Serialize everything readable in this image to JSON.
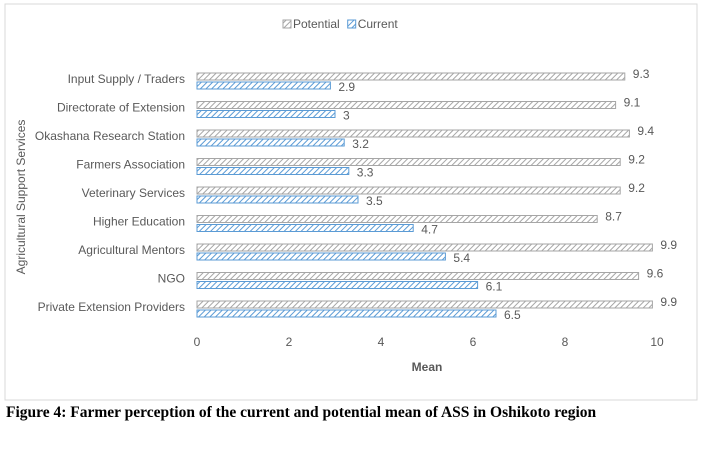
{
  "chart_data": {
    "type": "hbar",
    "caption": "Figure 4: Farmer perception of the current and potential mean of ASS in Oshikoto region",
    "xlabel": "Mean",
    "ylabel": "Agricultural Support Services",
    "categories": [
      "Input Supply / Traders",
      "Directorate of Extension",
      "Okashana Research Station",
      "Farmers Association",
      "Veterinary Services",
      "Higher Education",
      "Agricultural Mentors",
      "NGO",
      "Private Extension Providers"
    ],
    "series": [
      {
        "name": "Potential",
        "color": "#a6a6a6",
        "values": [
          9.3,
          9.1,
          9.4,
          9.2,
          9.2,
          8.7,
          9.9,
          9.6,
          9.9
        ]
      },
      {
        "name": "Current",
        "color": "#5b9bd5",
        "values": [
          2.9,
          3,
          3.2,
          3.3,
          3.5,
          4.7,
          5.4,
          6.1,
          6.5
        ]
      }
    ],
    "xlim": [
      0,
      10
    ],
    "xticks": [
      0,
      2,
      4,
      6,
      8,
      10
    ],
    "grid": false,
    "legend": "top"
  }
}
